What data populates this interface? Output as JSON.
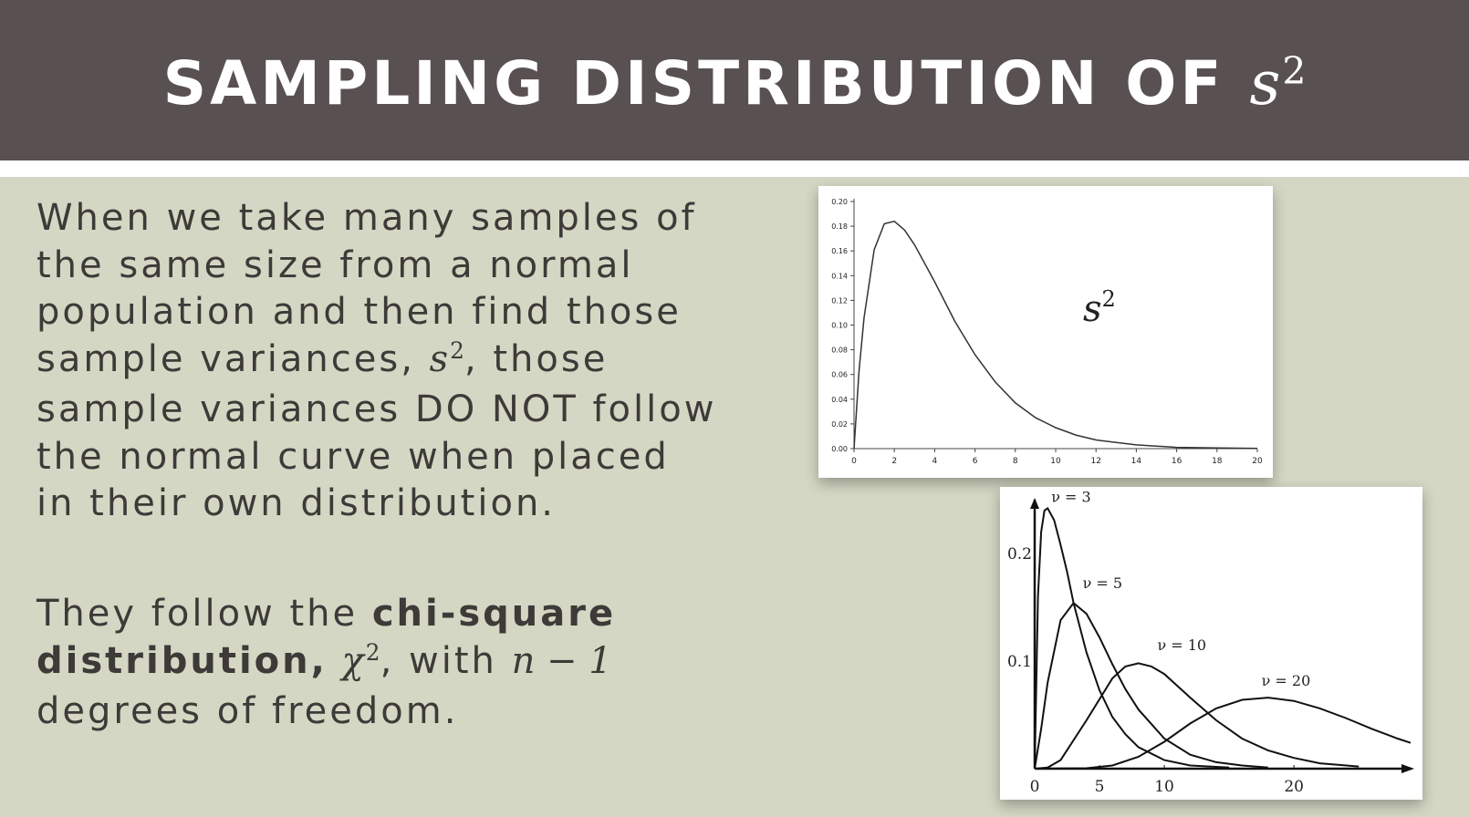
{
  "slide": {
    "title": {
      "text": "SAMPLING DISTRIBUTION OF",
      "symbol": "s",
      "exponent": "2"
    },
    "paragraph1": {
      "lines": [
        "When we take many samples of",
        "the same size from a normal",
        "population and then find those"
      ],
      "line4_before": "sample variances,",
      "line4_symbol": "s",
      "line4_exponent": "2",
      "line4_after": ", those",
      "line5": "sample variances DO NOT follow",
      "line6": "the normal curve when placed",
      "line7": "in their own distribution."
    },
    "paragraph2": {
      "before": "They follow the",
      "bold_term": "chi-square",
      "bold_term2": "distribution,",
      "symbol": "χ",
      "exponent": "2",
      "middle": ", with",
      "expression": "n − 1",
      "line3": "degrees of freedom."
    }
  },
  "chart_data": [
    {
      "type": "line",
      "annotation": {
        "symbol": "s",
        "exponent": "2"
      },
      "xlim": [
        0,
        20
      ],
      "ylim": [
        0,
        0.2
      ],
      "x_ticks": [
        "0",
        "2",
        "4",
        "6",
        "8",
        "10",
        "12",
        "14",
        "16",
        "18",
        "20"
      ],
      "y_ticks": [
        "0.00",
        "0.02",
        "0.04",
        "0.06",
        "0.08",
        "0.10",
        "0.12",
        "0.14",
        "0.16",
        "0.18",
        "0.20"
      ],
      "series": [
        {
          "x": [
            0,
            0.25,
            0.5,
            1,
            1.5,
            2,
            2.5,
            3,
            4,
            5,
            6,
            7,
            8,
            9,
            10,
            11,
            12,
            13,
            14,
            16,
            18,
            20
          ],
          "values": [
            0,
            0.063,
            0.106,
            0.161,
            0.182,
            0.184,
            0.177,
            0.165,
            0.135,
            0.103,
            0.076,
            0.054,
            0.037,
            0.025,
            0.017,
            0.011,
            0.007,
            0.005,
            0.003,
            0.001,
            0.0005,
            0.0002
          ]
        }
      ]
    },
    {
      "type": "line",
      "xlim": [
        0,
        29
      ],
      "ylim": [
        0,
        0.25
      ],
      "x_ticks": [
        "0",
        "5",
        "10",
        "20"
      ],
      "y_ticks": [
        "0.1",
        "0.2"
      ],
      "series": [
        {
          "name": "ν = 3",
          "x": [
            0,
            0.25,
            0.5,
            0.75,
            1,
            1.5,
            2,
            2.5,
            3,
            4,
            5,
            6,
            7,
            8,
            10,
            12,
            15
          ],
          "values": [
            0,
            0.16,
            0.22,
            0.24,
            0.242,
            0.231,
            0.208,
            0.183,
            0.154,
            0.108,
            0.073,
            0.048,
            0.032,
            0.02,
            0.008,
            0.003,
            0.001
          ]
        },
        {
          "name": "ν = 5",
          "x": [
            0,
            0.5,
            1,
            2,
            3,
            4,
            5,
            6,
            7,
            8,
            10,
            12,
            14,
            16,
            18
          ],
          "values": [
            0,
            0.037,
            0.08,
            0.138,
            0.154,
            0.144,
            0.122,
            0.097,
            0.074,
            0.055,
            0.028,
            0.013,
            0.006,
            0.003,
            0.001
          ]
        },
        {
          "name": "ν = 10",
          "x": [
            0,
            1,
            2,
            4,
            6,
            7,
            8,
            9,
            10,
            12,
            14,
            16,
            18,
            20,
            22,
            25
          ],
          "values": [
            0,
            0.001,
            0.008,
            0.045,
            0.084,
            0.095,
            0.098,
            0.095,
            0.088,
            0.066,
            0.045,
            0.028,
            0.017,
            0.01,
            0.005,
            0.002
          ]
        },
        {
          "name": "ν = 20",
          "x": [
            0,
            4,
            6,
            8,
            10,
            12,
            14,
            16,
            18,
            20,
            22,
            24,
            26,
            28,
            29
          ],
          "values": [
            0,
            0.0004,
            0.003,
            0.011,
            0.025,
            0.042,
            0.056,
            0.064,
            0.066,
            0.063,
            0.056,
            0.047,
            0.037,
            0.028,
            0.024
          ]
        }
      ]
    }
  ]
}
